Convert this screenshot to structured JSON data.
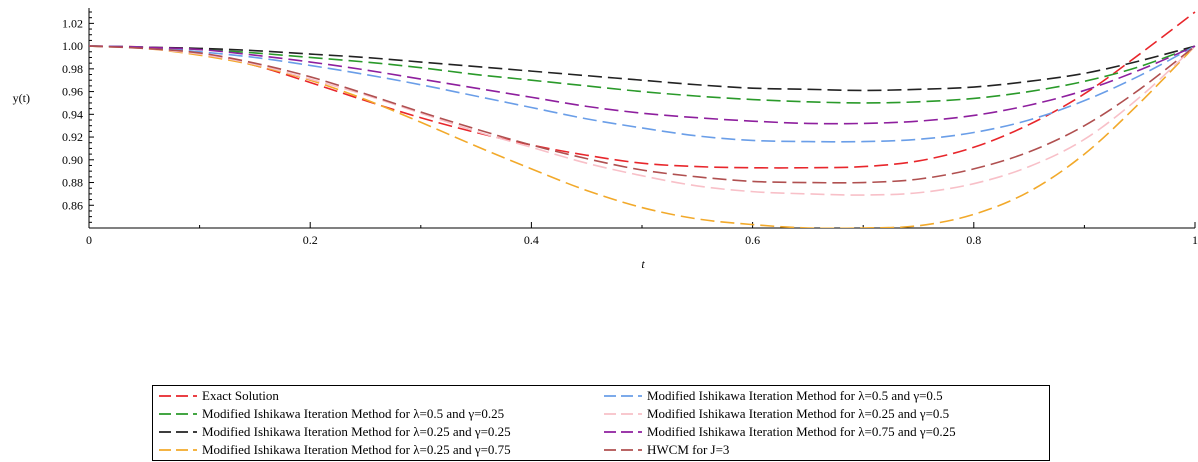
{
  "chart_data": {
    "type": "line",
    "title": "",
    "xlabel": "t",
    "ylabel": "y(t)",
    "xlim": [
      0,
      1
    ],
    "ylim": [
      0.84,
      1.03
    ],
    "xticks": [
      0,
      0.2,
      0.4,
      0.6,
      0.8,
      1
    ],
    "xtick_labels": [
      "0",
      "0.2",
      "0.4",
      "0.6",
      "0.8",
      "1"
    ],
    "yticks": [
      0.86,
      0.88,
      0.9,
      0.92,
      0.94,
      0.96,
      0.98,
      1.0,
      1.02
    ],
    "ytick_labels": [
      "0.86",
      "0.88",
      "0.90",
      "0.92",
      "0.94",
      "0.96",
      "0.98",
      "1.00",
      "1.02"
    ],
    "grid": false,
    "legend_position": "bottom",
    "x": [
      0,
      0.05,
      0.1,
      0.15,
      0.2,
      0.25,
      0.3,
      0.35,
      0.4,
      0.45,
      0.5,
      0.55,
      0.6,
      0.65,
      0.7,
      0.75,
      0.8,
      0.85,
      0.9,
      0.95,
      1.0
    ],
    "series": [
      {
        "name": "Exact Solution",
        "color": "#e8262b",
        "dash": "long",
        "values": [
          1.0,
          0.999,
          0.994,
          0.983,
          0.968,
          0.952,
          0.937,
          0.924,
          0.913,
          0.904,
          0.897,
          0.894,
          0.893,
          0.893,
          0.894,
          0.899,
          0.911,
          0.931,
          0.958,
          0.993,
          1.03
        ]
      },
      {
        "name": "Modified Ishikawa Iteration Method for  λ=0.5 and  γ=0.25",
        "color": "#2a9a2a",
        "dash": "long",
        "values": [
          1.0,
          0.999,
          0.997,
          0.994,
          0.99,
          0.986,
          0.981,
          0.975,
          0.97,
          0.965,
          0.96,
          0.956,
          0.953,
          0.951,
          0.95,
          0.951,
          0.954,
          0.96,
          0.969,
          0.982,
          1.0
        ]
      },
      {
        "name": "Modified Ishikawa Iteration Method for  λ=0.25 and  γ=0.25",
        "color": "#222222",
        "dash": "long",
        "values": [
          1.0,
          0.999,
          0.998,
          0.996,
          0.993,
          0.99,
          0.986,
          0.982,
          0.978,
          0.974,
          0.97,
          0.966,
          0.963,
          0.962,
          0.961,
          0.962,
          0.964,
          0.969,
          0.976,
          0.987,
          1.0
        ]
      },
      {
        "name": "Modified Ishikawa Iteration Method for  λ=0.25 and  γ=0.75",
        "color": "#f2a92a",
        "dash": "long",
        "values": [
          1.0,
          0.998,
          0.992,
          0.983,
          0.97,
          0.953,
          0.933,
          0.912,
          0.892,
          0.873,
          0.858,
          0.848,
          0.843,
          0.84,
          0.84,
          0.842,
          0.852,
          0.872,
          0.905,
          0.95,
          1.0
        ]
      },
      {
        "name": "Modified Ishikawa Iteration Method for  λ=0.5 and  γ=0.5",
        "color": "#6a9ee8",
        "dash": "long",
        "values": [
          1.0,
          0.999,
          0.995,
          0.99,
          0.983,
          0.975,
          0.966,
          0.956,
          0.946,
          0.936,
          0.928,
          0.921,
          0.917,
          0.916,
          0.916,
          0.918,
          0.924,
          0.935,
          0.952,
          0.974,
          1.0
        ]
      },
      {
        "name": "Modified Ishikawa Iteration Method for  λ=0.25 and  γ=0.5",
        "color": "#f8c0c8",
        "dash": "long",
        "values": [
          1.0,
          0.998,
          0.993,
          0.984,
          0.971,
          0.957,
          0.941,
          0.925,
          0.911,
          0.897,
          0.886,
          0.877,
          0.872,
          0.87,
          0.869,
          0.871,
          0.879,
          0.894,
          0.918,
          0.955,
          1.0
        ]
      },
      {
        "name": "Modified Ishikawa Iteration Method for  λ=0.75 and  γ=0.25",
        "color": "#8e1f9e",
        "dash": "long",
        "values": [
          1.0,
          0.999,
          0.997,
          0.992,
          0.986,
          0.979,
          0.971,
          0.963,
          0.955,
          0.947,
          0.941,
          0.937,
          0.934,
          0.932,
          0.932,
          0.934,
          0.939,
          0.948,
          0.961,
          0.979,
          1.0
        ]
      },
      {
        "name": "HWCM for J=3",
        "color": "#b05050",
        "dash": "long",
        "values": [
          1.0,
          0.998,
          0.994,
          0.985,
          0.973,
          0.958,
          0.942,
          0.927,
          0.913,
          0.901,
          0.891,
          0.885,
          0.881,
          0.88,
          0.88,
          0.883,
          0.892,
          0.907,
          0.93,
          0.962,
          1.0
        ]
      }
    ]
  },
  "legend": {
    "items": [
      {
        "label": "Exact Solution",
        "color": "#e8262b"
      },
      {
        "label": "Modified Ishikawa Iteration Method for  λ=0.5 and  γ=0.25",
        "color": "#2a9a2a"
      },
      {
        "label": "Modified Ishikawa Iteration Method for  λ=0.25 and  γ=0.25",
        "color": "#222222"
      },
      {
        "label": "Modified Ishikawa Iteration Method for  λ=0.25 and  γ=0.75",
        "color": "#f2a92a"
      },
      {
        "label": "Modified Ishikawa Iteration Method for  λ=0.5 and  γ=0.5",
        "color": "#6a9ee8"
      },
      {
        "label": "Modified Ishikawa Iteration Method for  λ=0.25 and  γ=0.5",
        "color": "#f8c0c8"
      },
      {
        "label": "Modified Ishikawa Iteration Method for  λ=0.75 and  γ=0.25",
        "color": "#8e1f9e"
      },
      {
        "label": "HWCM for J=3",
        "color": "#b05050"
      }
    ]
  }
}
